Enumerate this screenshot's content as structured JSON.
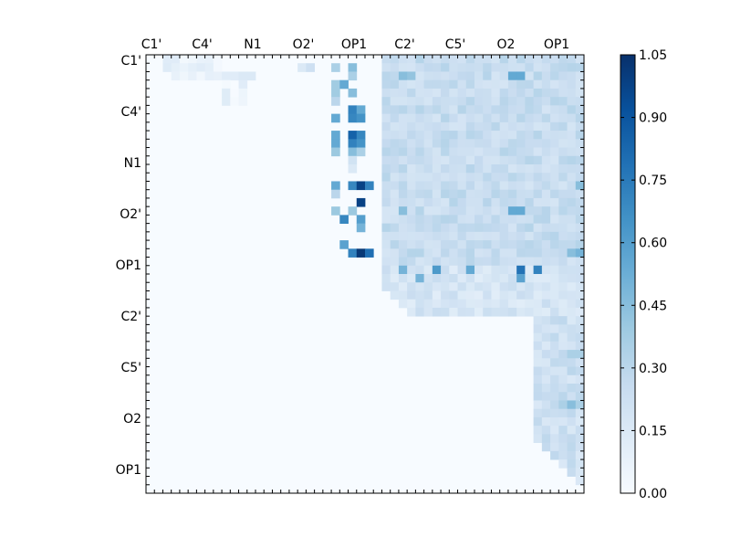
{
  "chart_data": {
    "type": "heatmap",
    "title": "",
    "xlabel": "",
    "ylabel": "",
    "x_tick_labels": [
      "C1'",
      "C4'",
      "N1",
      "O2'",
      "OP1",
      "C2'",
      "C5'",
      "O2",
      "OP1"
    ],
    "y_tick_labels": [
      "C1'",
      "C4'",
      "N1",
      "O2'",
      "OP1",
      "C2'",
      "C5'",
      "O2",
      "OP1"
    ],
    "x_tick_label_position": "top",
    "grid": false,
    "grid_size": 52,
    "upper_triangle_only": true,
    "colormap": "Blues",
    "colormap_colors": [
      "#f7fbff",
      "#deebf7",
      "#c6dbef",
      "#9ecae1",
      "#6baed6",
      "#4292c6",
      "#2171b5",
      "#08519c",
      "#08306b"
    ],
    "zlim": [
      0,
      1.05
    ],
    "colorbar": {
      "position": "right",
      "tick_labels": [
        "0.00",
        "0.15",
        "0.30",
        "0.45",
        "0.60",
        "0.75",
        "0.90",
        "1.05"
      ],
      "ticks": [
        0,
        0.15,
        0.3,
        0.45,
        0.6,
        0.75,
        0.9,
        1.05
      ]
    },
    "regions": [
      {
        "rows": [
          0,
          3
        ],
        "cols": [
          2,
          9
        ],
        "value": 0.08,
        "note": "light band top-left"
      },
      {
        "rows": [
          3,
          6
        ],
        "cols": [
          9,
          12
        ],
        "value": 0.06
      },
      {
        "rows": [
          0,
          25
        ],
        "cols": [
          28,
          52
        ],
        "value": 0.25
      },
      {
        "rows": [
          25,
          31
        ],
        "cols": [
          28,
          52
        ],
        "value": 0.18
      },
      {
        "rows": [
          31,
          52
        ],
        "cols": [
          46,
          52
        ],
        "value": 0.22
      }
    ],
    "cells": [
      {
        "r": 0,
        "c": 2,
        "v": 0.12
      },
      {
        "r": 0,
        "c": 3,
        "v": 0.12
      },
      {
        "r": 1,
        "c": 5,
        "v": 0.1
      },
      {
        "r": 2,
        "c": 5,
        "v": 0.08
      },
      {
        "r": 2,
        "c": 9,
        "v": 0.12
      },
      {
        "r": 2,
        "c": 10,
        "v": 0.12
      },
      {
        "r": 2,
        "c": 11,
        "v": 0.15
      },
      {
        "r": 2,
        "c": 12,
        "v": 0.15
      },
      {
        "r": 1,
        "c": 18,
        "v": 0.15
      },
      {
        "r": 1,
        "c": 19,
        "v": 0.22
      },
      {
        "r": 1,
        "c": 22,
        "v": 0.35
      },
      {
        "r": 1,
        "c": 24,
        "v": 0.45
      },
      {
        "r": 3,
        "c": 23,
        "v": 0.55
      },
      {
        "r": 4,
        "c": 24,
        "v": 0.45
      },
      {
        "r": 2,
        "c": 24,
        "v": 0.35
      },
      {
        "r": 3,
        "c": 22,
        "v": 0.38
      },
      {
        "r": 4,
        "c": 22,
        "v": 0.38
      },
      {
        "r": 5,
        "c": 22,
        "v": 0.3
      },
      {
        "r": 7,
        "c": 22,
        "v": 0.55
      },
      {
        "r": 7,
        "c": 24,
        "v": 0.7
      },
      {
        "r": 7,
        "c": 25,
        "v": 0.65
      },
      {
        "r": 6,
        "c": 24,
        "v": 0.72
      },
      {
        "r": 6,
        "c": 25,
        "v": 0.55
      },
      {
        "r": 9,
        "c": 22,
        "v": 0.55
      },
      {
        "r": 9,
        "c": 24,
        "v": 0.85
      },
      {
        "r": 9,
        "c": 25,
        "v": 0.7
      },
      {
        "r": 10,
        "c": 22,
        "v": 0.55
      },
      {
        "r": 10,
        "c": 24,
        "v": 0.72
      },
      {
        "r": 10,
        "c": 25,
        "v": 0.65
      },
      {
        "r": 11,
        "c": 22,
        "v": 0.4
      },
      {
        "r": 11,
        "c": 24,
        "v": 0.45
      },
      {
        "r": 11,
        "c": 25,
        "v": 0.35
      },
      {
        "r": 12,
        "c": 24,
        "v": 0.2
      },
      {
        "r": 13,
        "c": 24,
        "v": 0.15
      },
      {
        "r": 15,
        "c": 22,
        "v": 0.55
      },
      {
        "r": 15,
        "c": 24,
        "v": 0.7
      },
      {
        "r": 15,
        "c": 25,
        "v": 0.98
      },
      {
        "r": 15,
        "c": 26,
        "v": 0.72
      },
      {
        "r": 16,
        "c": 22,
        "v": 0.3
      },
      {
        "r": 17,
        "c": 25,
        "v": 0.98
      },
      {
        "r": 19,
        "c": 23,
        "v": 0.7
      },
      {
        "r": 19,
        "c": 25,
        "v": 0.6
      },
      {
        "r": 18,
        "c": 22,
        "v": 0.4
      },
      {
        "r": 18,
        "c": 24,
        "v": 0.4
      },
      {
        "r": 20,
        "c": 25,
        "v": 0.5
      },
      {
        "r": 22,
        "c": 23,
        "v": 0.58
      },
      {
        "r": 23,
        "c": 24,
        "v": 0.72
      },
      {
        "r": 23,
        "c": 25,
        "v": 1.02
      },
      {
        "r": 23,
        "c": 26,
        "v": 0.8
      },
      {
        "r": 25,
        "c": 30,
        "v": 0.5
      },
      {
        "r": 25,
        "c": 34,
        "v": 0.62
      },
      {
        "r": 25,
        "c": 38,
        "v": 0.55
      },
      {
        "r": 25,
        "c": 44,
        "v": 0.78
      },
      {
        "r": 25,
        "c": 46,
        "v": 0.72
      },
      {
        "r": 26,
        "c": 44,
        "v": 0.58
      },
      {
        "r": 26,
        "c": 32,
        "v": 0.5
      },
      {
        "r": 2,
        "c": 30,
        "v": 0.45
      },
      {
        "r": 2,
        "c": 31,
        "v": 0.42
      },
      {
        "r": 2,
        "c": 43,
        "v": 0.55
      },
      {
        "r": 2,
        "c": 44,
        "v": 0.55
      },
      {
        "r": 18,
        "c": 30,
        "v": 0.45
      },
      {
        "r": 18,
        "c": 43,
        "v": 0.55
      },
      {
        "r": 18,
        "c": 44,
        "v": 0.55
      },
      {
        "r": 15,
        "c": 51,
        "v": 0.45
      },
      {
        "r": 23,
        "c": 51,
        "v": 0.5
      },
      {
        "r": 23,
        "c": 50,
        "v": 0.45
      },
      {
        "r": 35,
        "c": 50,
        "v": 0.35
      },
      {
        "r": 35,
        "c": 51,
        "v": 0.35
      },
      {
        "r": 37,
        "c": 50,
        "v": 0.3
      },
      {
        "r": 41,
        "c": 49,
        "v": 0.35
      },
      {
        "r": 41,
        "c": 50,
        "v": 0.45
      },
      {
        "r": 41,
        "c": 51,
        "v": 0.35
      },
      {
        "r": 40,
        "c": 49,
        "v": 0.3
      },
      {
        "r": 42,
        "c": 49,
        "v": 0.25
      }
    ]
  }
}
